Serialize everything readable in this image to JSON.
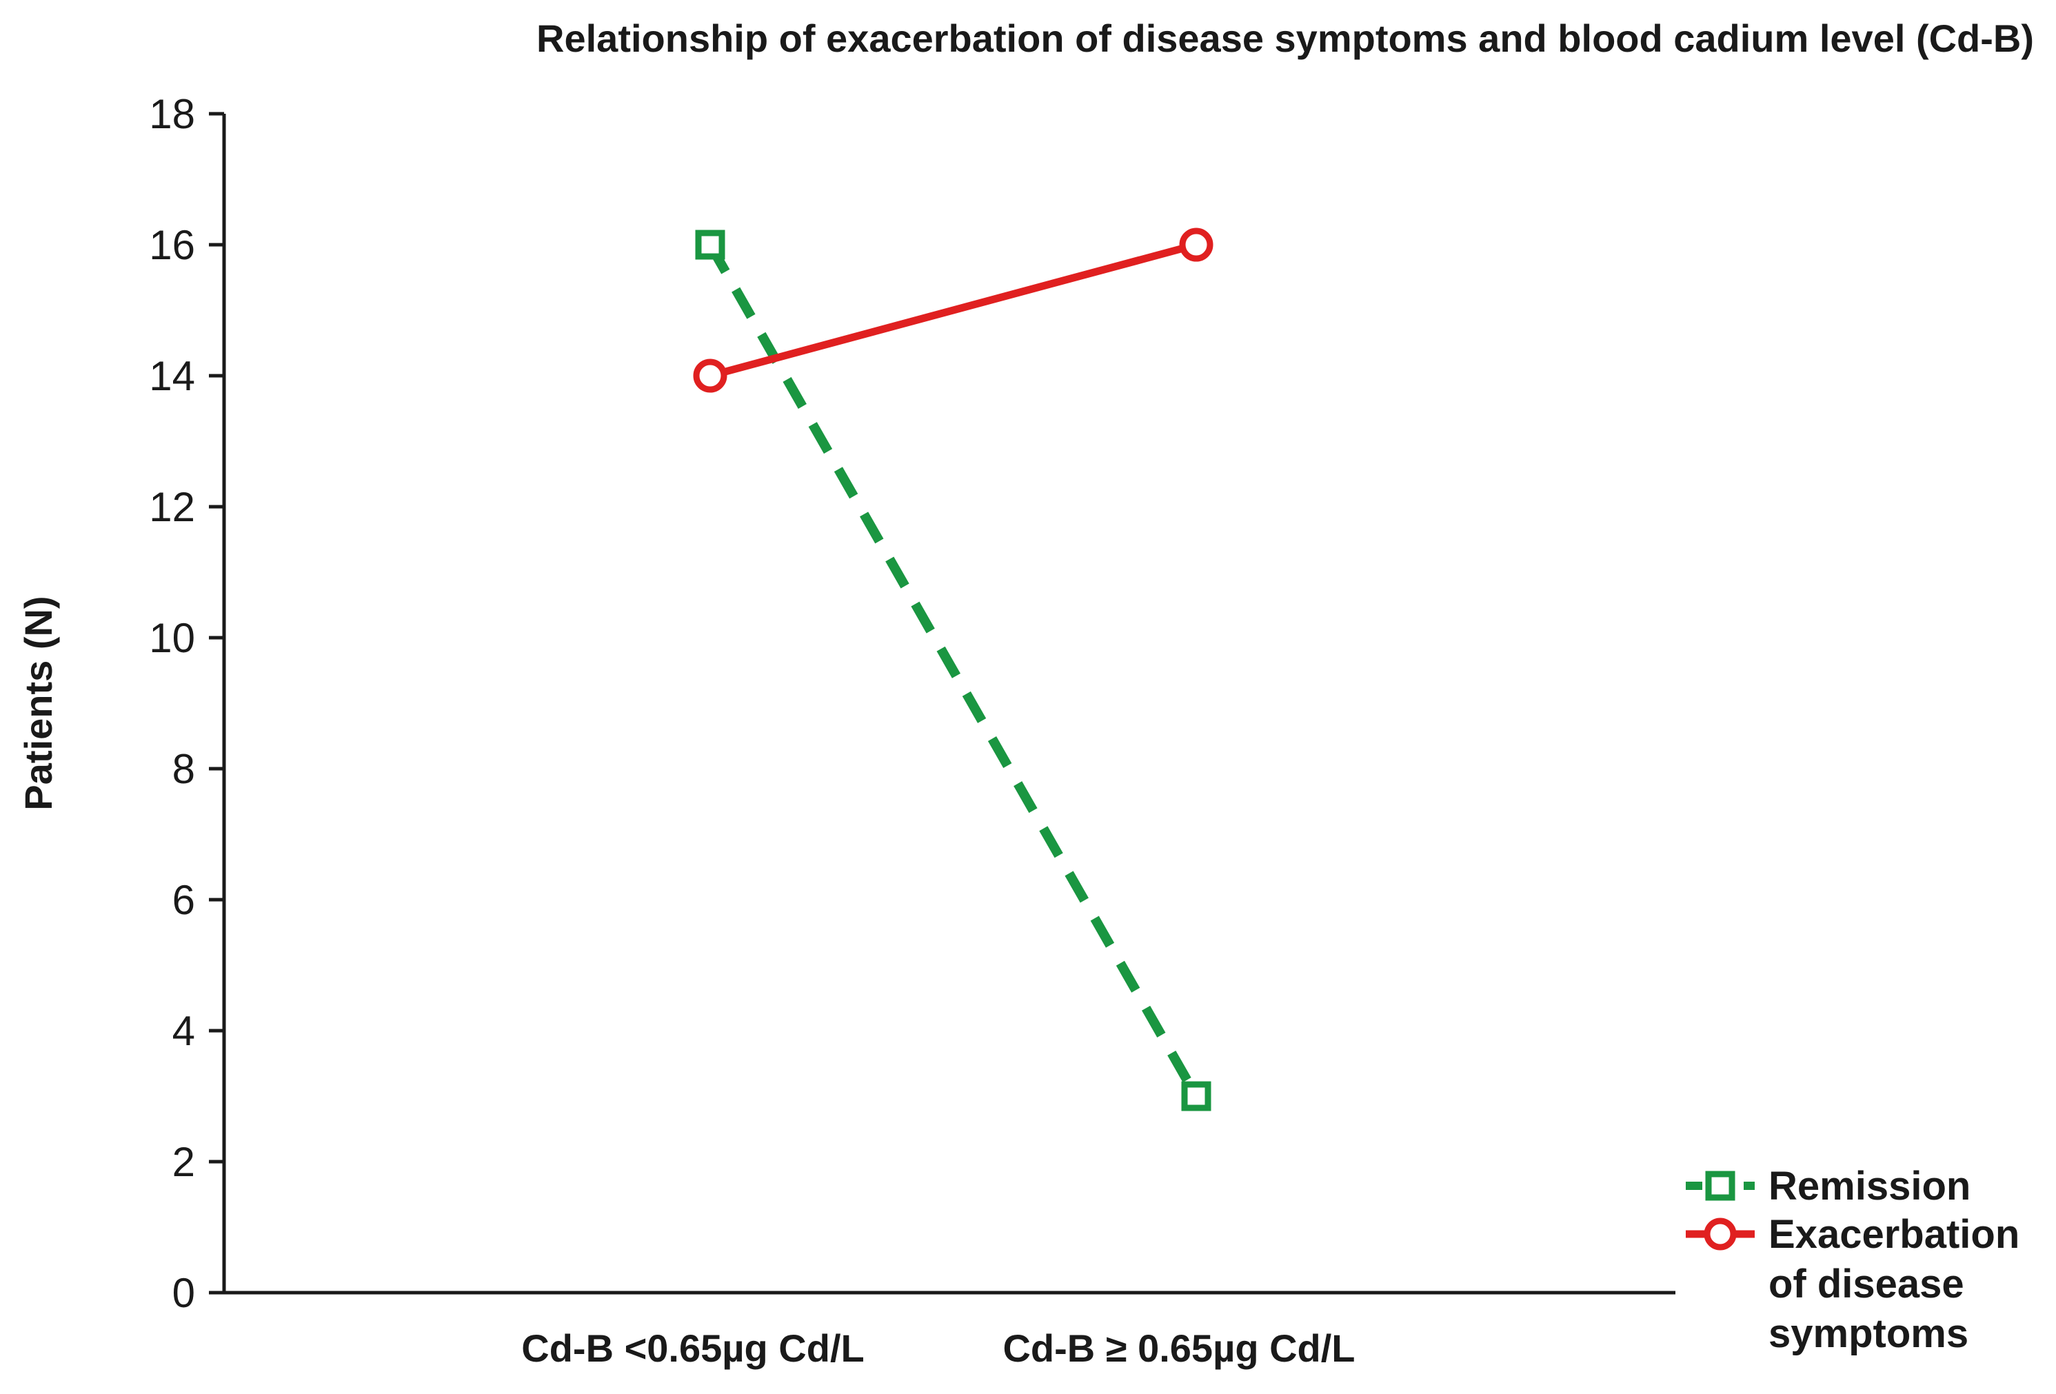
{
  "chart_data": {
    "type": "line",
    "title": "Relationship of exacerbation of disease symptoms and blood cadium level (Cd-B)",
    "xlabel": "",
    "ylabel": "Patients (N)",
    "categories": [
      "Cd-B <0.65µg Cd/L",
      "Cd-B ≥ 0.65µg Cd/L"
    ],
    "ylim": [
      0,
      18
    ],
    "yticks": [
      0,
      2,
      4,
      6,
      8,
      10,
      12,
      14,
      16,
      18
    ],
    "grid": false,
    "legend_position": "bottom-right",
    "series": [
      {
        "name": "Remission",
        "values": [
          16,
          3
        ],
        "color": "#1a9641",
        "line_style": "dashed",
        "marker": "square",
        "legend_lines": [
          "Remission"
        ]
      },
      {
        "name": "Exacerbation of disease symptoms",
        "values": [
          14,
          16
        ],
        "color": "#e02020",
        "line_style": "solid",
        "marker": "circle",
        "legend_lines": [
          "Exacerbation",
          "of disease",
          "symptoms"
        ]
      }
    ]
  }
}
